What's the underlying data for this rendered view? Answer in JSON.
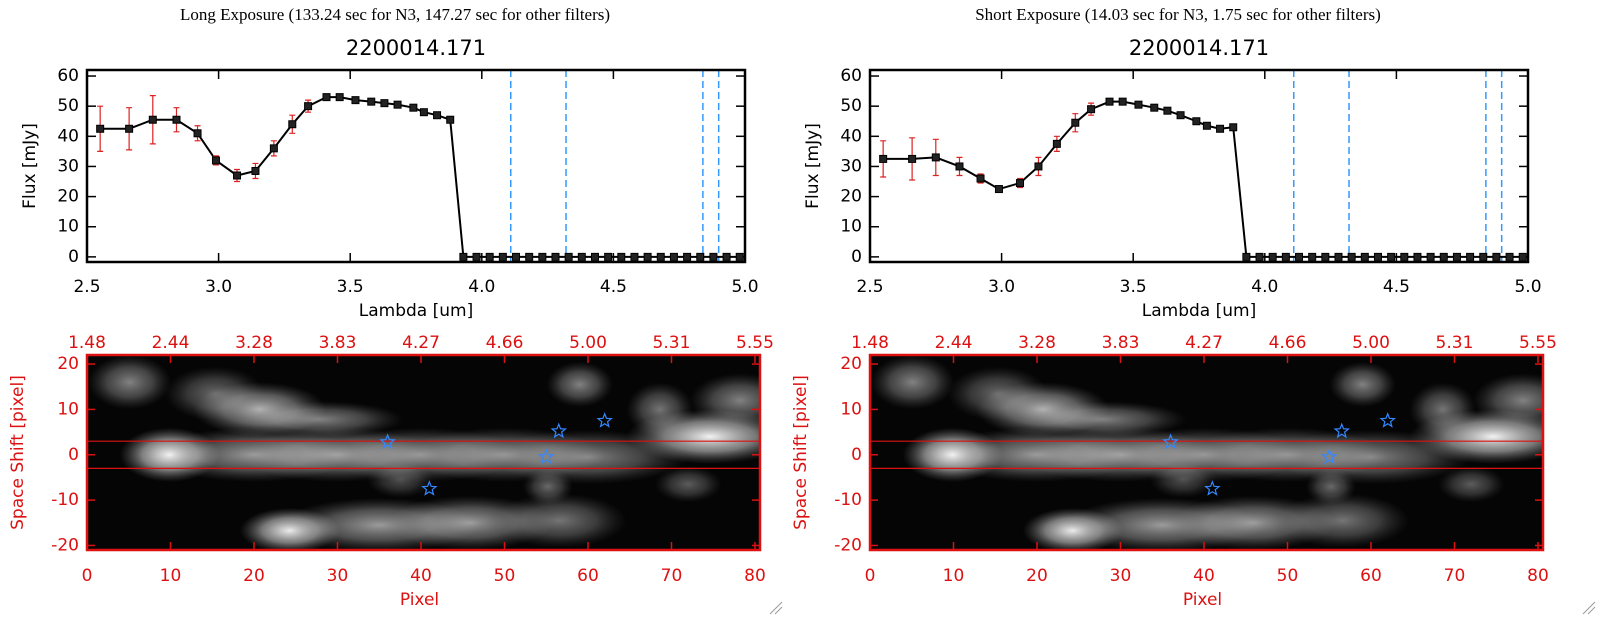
{
  "chart_data": [
    {
      "type": "line",
      "suptitle": "Long Exposure (133.24 sec for N3, 147.27 sec for other filters)",
      "title": "2200014.171",
      "xlabel": "Lambda [um]",
      "ylabel": "Flux [mJy]",
      "xlim": [
        2.5,
        5.0
      ],
      "ylim": [
        -1.7,
        62
      ],
      "xticks": [
        2.5,
        {
          "value": 3,
          "label": "3.0"
        },
        3.5,
        {
          "value": 4,
          "label": "4.0"
        },
        4.5,
        {
          "value": 5,
          "label": "5.0"
        }
      ],
      "yticks": [
        0,
        10,
        20,
        30,
        40,
        50,
        60
      ],
      "vlines": [
        4.11,
        4.32,
        4.84,
        4.9
      ],
      "vline_color": "#3399ff",
      "x": [
        2.55,
        2.66,
        2.75,
        2.84,
        2.92,
        2.99,
        3.07,
        3.14,
        3.21,
        3.28,
        3.34,
        3.41,
        3.46,
        3.52,
        3.58,
        3.63,
        3.68,
        3.74,
        3.78,
        3.83,
        3.88,
        3.93,
        3.98,
        4.03,
        4.08,
        4.13,
        4.18,
        4.23,
        4.28,
        4.33,
        4.38,
        4.43,
        4.48,
        4.53,
        4.58,
        4.63,
        4.68,
        4.73,
        4.78,
        4.83,
        4.88,
        4.93,
        4.98
      ],
      "series": [
        {
          "color": "#000000",
          "error_color": "#dd2222",
          "values": [
            42.5,
            42.5,
            45.5,
            45.5,
            41,
            32,
            27,
            28.5,
            36,
            44,
            50,
            53,
            53,
            52,
            51.5,
            51,
            50.5,
            49.5,
            48,
            47,
            45.5,
            0,
            0,
            0,
            0,
            0,
            0,
            0,
            0,
            0,
            0,
            0,
            0,
            0,
            0,
            0,
            0,
            0,
            0,
            0,
            0,
            0,
            0
          ],
          "errors": [
            7.5,
            7,
            8,
            4,
            2.5,
            1.5,
            2,
            2.5,
            2.5,
            3,
            2,
            1,
            1,
            0.8,
            0.8,
            0.8,
            0.8,
            0.8,
            0.8,
            0.8,
            0.8,
            null,
            null,
            null,
            null,
            null,
            null,
            null,
            null,
            null,
            null,
            null,
            null,
            null,
            null,
            null,
            null,
            null,
            null,
            null,
            null,
            null,
            null
          ]
        }
      ]
    },
    {
      "type": "image",
      "xlabel": "Pixel",
      "ylabel": "Space Shift [pixel]",
      "axis_color": "#dd1111",
      "xlim": [
        0,
        80.6
      ],
      "ylim": [
        -21,
        22
      ],
      "xticks": [
        0,
        10,
        20,
        30,
        40,
        50,
        60,
        70,
        80
      ],
      "x2ticks": [
        {
          "value": 0,
          "label": "1.48"
        },
        {
          "value": 10,
          "label": "2.44"
        },
        {
          "value": 20,
          "label": "3.28"
        },
        {
          "value": 30,
          "label": "3.83"
        },
        {
          "value": 40,
          "label": "4.27"
        },
        {
          "value": 50,
          "label": "4.66"
        },
        {
          "value": 60,
          "label": "5.00"
        },
        {
          "value": 70,
          "label": "5.31"
        },
        {
          "value": 80,
          "label": "5.55"
        }
      ],
      "yticks": [
        -20,
        -10,
        0,
        10,
        20
      ],
      "blobs": {
        "x": [
          9.9,
          20,
          30,
          40,
          50,
          60,
          74.6,
          5.1,
          20.7,
          15.3,
          27.9,
          59,
          68.6,
          78.2,
          24.3,
          35,
          45.9,
          56.6,
          55.2,
          72,
          37.5
        ],
        "y": [
          0,
          0,
          0,
          0,
          0,
          -0.5,
          4,
          16,
          10,
          13.5,
          7.8,
          15.5,
          10,
          12,
          -16.7,
          -15.5,
          -15,
          -14.5,
          -7,
          -6.5,
          -5.5
        ],
        "sx": [
          3,
          6,
          6,
          6,
          6,
          6,
          5,
          2.5,
          4,
          3,
          5,
          2,
          2,
          3,
          3,
          6,
          5,
          4,
          1.5,
          2,
          2
        ],
        "sy": [
          3,
          3,
          3,
          3,
          3,
          3,
          3,
          3,
          3,
          3,
          2,
          2.5,
          3,
          3,
          2.5,
          3,
          3,
          3,
          2,
          2,
          2
        ],
        "amp": [
          1,
          0.6,
          0.6,
          0.55,
          0.55,
          0.5,
          0.95,
          0.5,
          0.7,
          0.4,
          0.5,
          0.5,
          0.45,
          0.5,
          0.95,
          0.6,
          0.6,
          0.45,
          0.4,
          0.35,
          0.3
        ]
      },
      "hlines": [
        3,
        -3
      ],
      "line_color": "#dd1111",
      "markers": {
        "x": [
          36,
          41,
          55,
          56.5,
          62
        ],
        "y": [
          2.8,
          -7.5,
          -0.5,
          5.2,
          7.5
        ],
        "color": "#3388ff"
      }
    },
    {
      "type": "line",
      "suptitle": "Short Exposure (14.03 sec for N3, 1.75 sec for other filters)",
      "title": "2200014.171",
      "xlabel": "Lambda [um]",
      "ylabel": "Flux [mJy]",
      "xlim": [
        2.5,
        5.0
      ],
      "ylim": [
        -1.7,
        62
      ],
      "xticks": [
        2.5,
        {
          "value": 3,
          "label": "3.0"
        },
        3.5,
        {
          "value": 4,
          "label": "4.0"
        },
        4.5,
        {
          "value": 5,
          "label": "5.0"
        }
      ],
      "yticks": [
        0,
        10,
        20,
        30,
        40,
        50,
        60
      ],
      "vlines": [
        4.11,
        4.32,
        4.84,
        4.9
      ],
      "vline_color": "#3399ff",
      "x": [
        2.55,
        2.66,
        2.75,
        2.84,
        2.92,
        2.99,
        3.07,
        3.14,
        3.21,
        3.28,
        3.34,
        3.41,
        3.46,
        3.52,
        3.58,
        3.63,
        3.68,
        3.74,
        3.78,
        3.83,
        3.88,
        3.93,
        3.98,
        4.03,
        4.08,
        4.13,
        4.18,
        4.23,
        4.28,
        4.33,
        4.38,
        4.43,
        4.48,
        4.53,
        4.58,
        4.63,
        4.68,
        4.73,
        4.78,
        4.83,
        4.88,
        4.93,
        4.98
      ],
      "series": [
        {
          "color": "#000000",
          "error_color": "#dd2222",
          "values": [
            32.5,
            32.5,
            33,
            30,
            26,
            22.5,
            24.5,
            30,
            37.5,
            44.5,
            49,
            51.5,
            51.5,
            50.5,
            49.5,
            48.5,
            47,
            45,
            43.5,
            42.5,
            43,
            0,
            0,
            0,
            0,
            0,
            0,
            0,
            0,
            0,
            0,
            0,
            0,
            0,
            0,
            0,
            0,
            0,
            0,
            0,
            0,
            0,
            0
          ],
          "errors": [
            6,
            7,
            6,
            3,
            1.5,
            1,
            1.5,
            3,
            2.5,
            3,
            2,
            1,
            1,
            0.8,
            0.8,
            0.8,
            0.8,
            0.8,
            0.8,
            0.8,
            0.8,
            null,
            null,
            null,
            null,
            null,
            null,
            null,
            null,
            null,
            null,
            null,
            null,
            null,
            null,
            null,
            null,
            null,
            null,
            null,
            null,
            null,
            null
          ]
        }
      ]
    },
    {
      "type": "image",
      "xlabel": "Pixel",
      "ylabel": "Space Shift [pixel]",
      "axis_color": "#dd1111",
      "xlim": [
        0,
        80.6
      ],
      "ylim": [
        -21,
        22
      ],
      "xticks": [
        0,
        10,
        20,
        30,
        40,
        50,
        60,
        70,
        80
      ],
      "x2ticks": [
        {
          "value": 0,
          "label": "1.48"
        },
        {
          "value": 10,
          "label": "2.44"
        },
        {
          "value": 20,
          "label": "3.28"
        },
        {
          "value": 30,
          "label": "3.83"
        },
        {
          "value": 40,
          "label": "4.27"
        },
        {
          "value": 50,
          "label": "4.66"
        },
        {
          "value": 60,
          "label": "5.00"
        },
        {
          "value": 70,
          "label": "5.31"
        },
        {
          "value": 80,
          "label": "5.55"
        }
      ],
      "yticks": [
        -20,
        -10,
        0,
        10,
        20
      ],
      "blobs": {
        "x": [
          9.9,
          20,
          30,
          40,
          50,
          60,
          74.6,
          5.1,
          20.7,
          15.3,
          27.9,
          59,
          68.6,
          78.2,
          24.3,
          35,
          45.9,
          56.6,
          55.2,
          72,
          37.5
        ],
        "y": [
          0,
          0,
          0,
          0,
          0,
          -0.5,
          4,
          16,
          10,
          13.5,
          7.8,
          15.5,
          10,
          12,
          -16.7,
          -15.5,
          -15,
          -14.5,
          -7,
          -6.5,
          -5.5
        ],
        "sx": [
          3,
          6,
          6,
          6,
          6,
          6,
          5,
          2.5,
          4,
          3,
          5,
          2,
          2,
          3,
          3,
          6,
          5,
          4,
          1.5,
          2,
          2
        ],
        "sy": [
          3,
          3,
          3,
          3,
          3,
          3,
          3,
          3,
          3,
          3,
          2,
          2.5,
          3,
          3,
          2.5,
          3,
          3,
          3,
          2,
          2,
          2
        ],
        "amp": [
          1,
          0.6,
          0.6,
          0.55,
          0.55,
          0.5,
          0.95,
          0.5,
          0.7,
          0.4,
          0.5,
          0.5,
          0.45,
          0.5,
          0.95,
          0.6,
          0.6,
          0.45,
          0.4,
          0.35,
          0.3
        ]
      },
      "hlines": [
        3,
        -3
      ],
      "line_color": "#dd1111",
      "markers": {
        "x": [
          36,
          41,
          55,
          56.5,
          62
        ],
        "y": [
          2.8,
          -7.5,
          -0.5,
          5.2,
          7.5
        ],
        "color": "#3388ff"
      }
    }
  ]
}
